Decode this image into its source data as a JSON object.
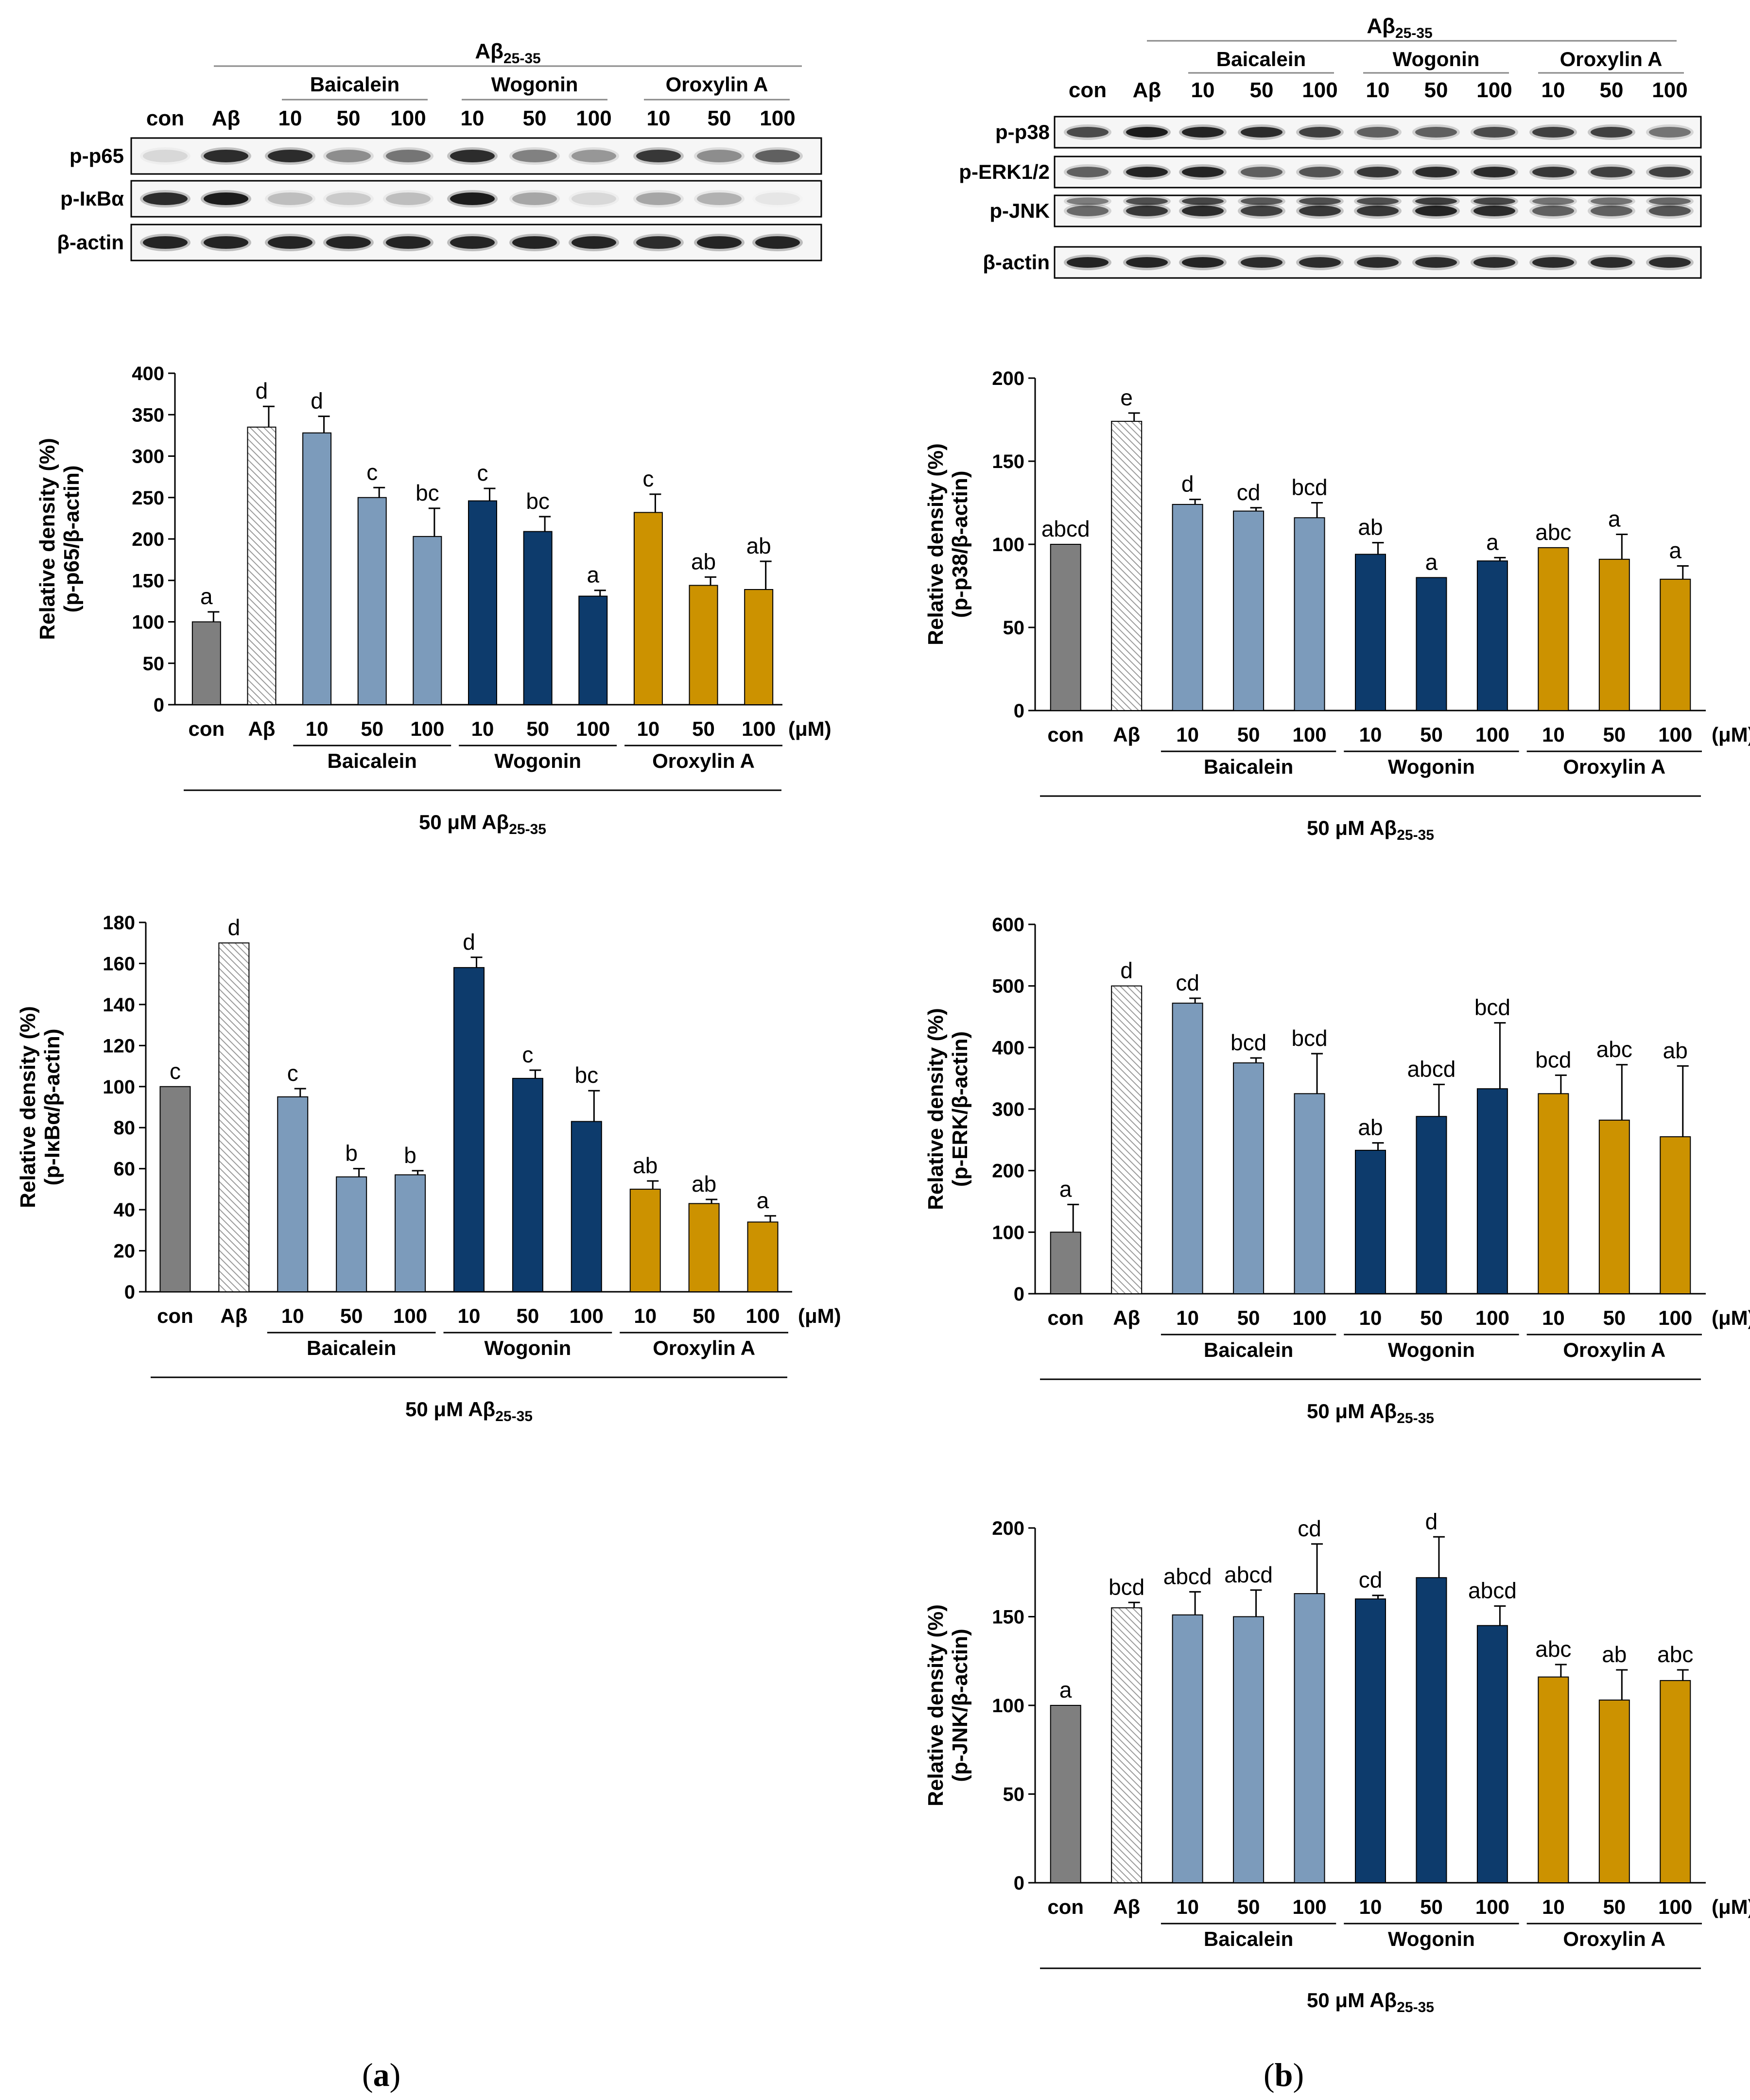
{
  "colors": {
    "con": "#7f7f7f",
    "abeta_hatch": "#b8b8b8",
    "baicalein": "#7c9bbb",
    "wogonin": "#0d3b6c",
    "oroxylin": "#cc9200"
  },
  "blot_a": {
    "header_main": "Aβ",
    "header_sub": "25-35",
    "groups": [
      "Baicalein",
      "Wogonin",
      "Oroxylin A"
    ],
    "lanes": [
      "con",
      "Aβ",
      "10",
      "50",
      "100",
      "10",
      "50",
      "100",
      "10",
      "50",
      "100"
    ],
    "rows": [
      "p-p65",
      "p-IκBα",
      "β-actin"
    ]
  },
  "blot_b": {
    "header_main": "Aβ",
    "header_sub": "25-35",
    "groups": [
      "Baicalein",
      "Wogonin",
      "Oroxylin A"
    ],
    "lanes": [
      "con",
      "Aβ",
      "10",
      "50",
      "100",
      "10",
      "50",
      "100",
      "10",
      "50",
      "100"
    ],
    "rows": [
      "p-p38",
      "p-ERK1/2",
      "p-JNK",
      "β-actin"
    ]
  },
  "panel_labels": {
    "a": "a",
    "b": "b"
  },
  "chart_data": [
    {
      "id": "p65",
      "type": "bar",
      "ylabel_line1": "Relative density (%)",
      "ylabel_line2": "(p-p65/β-actin)",
      "ylim": [
        0,
        400
      ],
      "yticks": [
        0,
        50,
        100,
        150,
        200,
        250,
        300,
        350,
        400
      ],
      "categories": [
        "con",
        "Aβ",
        "10",
        "50",
        "100",
        "10",
        "50",
        "100",
        "10",
        "50",
        "100"
      ],
      "unit_label": "(μM)",
      "groups": [
        "Baicalein",
        "Wogonin",
        "Oroxylin A"
      ],
      "treatment_main": "50 μM Aβ",
      "treatment_sub": "25-35",
      "values": [
        100,
        335,
        328,
        250,
        203,
        246,
        209,
        131,
        232,
        144,
        139
      ],
      "errors": [
        12,
        25,
        20,
        12,
        34,
        15,
        18,
        7,
        22,
        10,
        34
      ],
      "letters": [
        "a",
        "d",
        "d",
        "c",
        "bc",
        "c",
        "bc",
        "a",
        "c",
        "ab",
        "ab"
      ]
    },
    {
      "id": "ikba",
      "type": "bar",
      "ylabel_line1": "Relative density (%)",
      "ylabel_line2": "(p-IκBα/β-actin)",
      "ylim": [
        0,
        180
      ],
      "yticks": [
        0,
        20,
        40,
        60,
        80,
        100,
        120,
        140,
        160,
        180
      ],
      "categories": [
        "con",
        "Aβ",
        "10",
        "50",
        "100",
        "10",
        "50",
        "100",
        "10",
        "50",
        "100"
      ],
      "unit_label": "(μM)",
      "groups": [
        "Baicalein",
        "Wogonin",
        "Oroxylin A"
      ],
      "treatment_main": "50 μM Aβ",
      "treatment_sub": "25-35",
      "values": [
        100,
        170,
        95,
        56,
        57,
        158,
        104,
        83,
        50,
        43,
        34
      ],
      "errors": [
        0,
        0,
        4,
        4,
        2,
        5,
        4,
        15,
        4,
        2,
        3
      ],
      "letters": [
        "c",
        "d",
        "c",
        "b",
        "b",
        "d",
        "c",
        "bc",
        "ab",
        "ab",
        "a"
      ]
    },
    {
      "id": "p38",
      "type": "bar",
      "ylabel_line1": "Relative density (%)",
      "ylabel_line2": "(p-p38/β-actin)",
      "ylim": [
        0,
        200
      ],
      "yticks": [
        0,
        50,
        100,
        150,
        200
      ],
      "categories": [
        "con",
        "Aβ",
        "10",
        "50",
        "100",
        "10",
        "50",
        "100",
        "10",
        "50",
        "100"
      ],
      "unit_label": "(μM)",
      "groups": [
        "Baicalein",
        "Wogonin",
        "Oroxylin A"
      ],
      "treatment_main": "50 μM Aβ",
      "treatment_sub": "25-35",
      "values": [
        100,
        174,
        124,
        120,
        116,
        94,
        80,
        90,
        98,
        91,
        79
      ],
      "errors": [
        0,
        5,
        3,
        2,
        9,
        7,
        0,
        2,
        0,
        15,
        8
      ],
      "letters": [
        "abcd",
        "e",
        "d",
        "cd",
        "bcd",
        "ab",
        "a",
        "a",
        "abc",
        "a",
        "a"
      ]
    },
    {
      "id": "erk",
      "type": "bar",
      "ylabel_line1": "Relative density (%)",
      "ylabel_line2": "(p-ERK/β-actin)",
      "ylim": [
        0,
        600
      ],
      "yticks": [
        0,
        100,
        200,
        300,
        400,
        500,
        600
      ],
      "categories": [
        "con",
        "Aβ",
        "10",
        "50",
        "100",
        "10",
        "50",
        "100",
        "10",
        "50",
        "100"
      ],
      "unit_label": "(μM)",
      "groups": [
        "Baicalein",
        "Wogonin",
        "Oroxylin A"
      ],
      "treatment_main": "50 μM Aβ",
      "treatment_sub": "25-35",
      "values": [
        100,
        500,
        472,
        375,
        325,
        233,
        288,
        333,
        325,
        282,
        255
      ],
      "errors": [
        45,
        0,
        8,
        8,
        65,
        12,
        52,
        107,
        30,
        90,
        115
      ],
      "letters": [
        "a",
        "d",
        "cd",
        "bcd",
        "bcd",
        "ab",
        "abcd",
        "bcd",
        "bcd",
        "abc",
        "ab"
      ]
    },
    {
      "id": "jnk",
      "type": "bar",
      "ylabel_line1": "Relative density (%)",
      "ylabel_line2": "(p-JNK/β-actin)",
      "ylim": [
        0,
        200
      ],
      "yticks": [
        0,
        50,
        100,
        150,
        200
      ],
      "categories": [
        "con",
        "Aβ",
        "10",
        "50",
        "100",
        "10",
        "50",
        "100",
        "10",
        "50",
        "100"
      ],
      "unit_label": "(μM)",
      "groups": [
        "Baicalein",
        "Wogonin",
        "Oroxylin A"
      ],
      "treatment_main": "50 μM Aβ",
      "treatment_sub": "25-35",
      "values": [
        100,
        155,
        151,
        150,
        163,
        160,
        172,
        145,
        116,
        103,
        114
      ],
      "errors": [
        0,
        3,
        13,
        15,
        28,
        2,
        23,
        11,
        7,
        17,
        6
      ],
      "letters": [
        "a",
        "bcd",
        "abcd",
        "abcd",
        "cd",
        "cd",
        "d",
        "abcd",
        "abc",
        "ab",
        "abc"
      ]
    }
  ]
}
